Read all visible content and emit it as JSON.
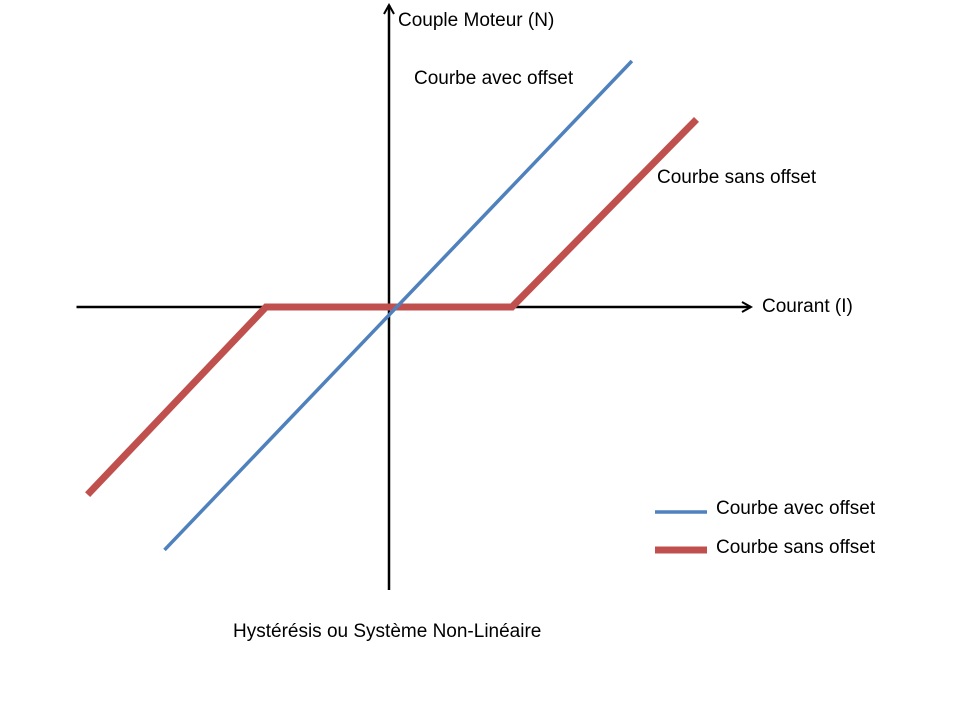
{
  "chart_data": {
    "type": "line",
    "title": "Hystérésis ou Système Non-Linéaire",
    "xlabel": "Courant (I)",
    "ylabel": "Couple Moteur (N)",
    "xlim": [
      -5,
      6
    ],
    "ylim": [
      -4.5,
      4.5
    ],
    "grid": false,
    "legend_position": "bottom-right",
    "series": [
      {
        "name": "Courbe avec offset",
        "color": "#4f81bd",
        "x": [
          -3.65,
          3.95
        ],
        "y": [
          -3.95,
          4.0
        ]
      },
      {
        "name": "Courbe sans offset",
        "color": "#c0504d",
        "x": [
          -4.9,
          -2.0,
          2.0,
          5.0
        ],
        "y": [
          -3.05,
          0.0,
          0.0,
          3.05
        ]
      }
    ],
    "annotations": [
      {
        "text": "Courbe avec offset",
        "series": "Courbe avec offset",
        "near": "upper end of blue line"
      },
      {
        "text": "Courbe sans offset",
        "series": "Courbe sans offset",
        "near": "upper end of red line"
      }
    ]
  }
}
